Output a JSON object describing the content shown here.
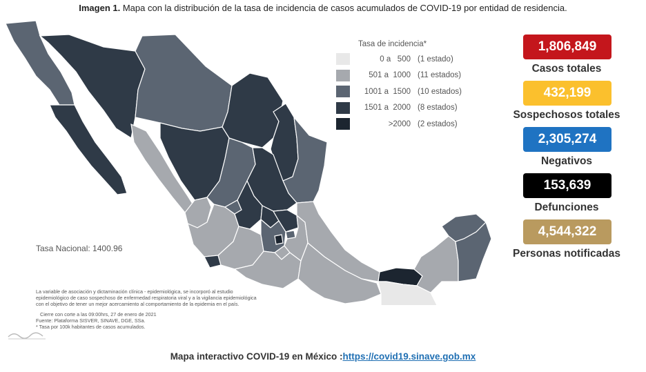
{
  "caption": {
    "bold": "Imagen 1.",
    "text": "Mapa con la distribución de la tasa de incidencia de casos acumulados de COVID-19 por entidad de residencia."
  },
  "chart_data": {
    "type": "choropleth",
    "legend": {
      "title": "Tasa de incidencia*",
      "placement": "top-center",
      "bins": [
        {
          "range": "0 a   500",
          "count": "(1 estado)",
          "color": "#e8e8e8"
        },
        {
          "range": "501 a  1000",
          "count": "(11 estados)",
          "color": "#a6a9ae"
        },
        {
          "range": "1001 a  1500",
          "count": "(10 estados)",
          "color": "#5b6572"
        },
        {
          "range": "1501 a  2000",
          "count": "(8 estados)",
          "color": "#2f3a47"
        },
        {
          "range": ">2000",
          "count": "(2 estados)",
          "color": "#1c2530"
        }
      ]
    },
    "national_rate": "Tasa Nacional: 1400.96"
  },
  "notes": {
    "line1": "La variable de asociación y dictaminación clínica - epidemiológica, se incorporó al estudio",
    "line2": "epidemiológico de caso sospechoso de enfermedad respiratoria viral y a la vigilancia epidemiológica",
    "line3": "con el objetivo de tener un mejor acercamiento al comportamiento de la epidemia en el país.",
    "line4": "Cierre con corte a las 09:00hrs, 27 de enero de 2021",
    "line5": "Fuente: Plataforma SISVER, SINAVE, DGE, SSa.",
    "line6": "* Tasa por 100k habitantes de casos acumulados."
  },
  "stats": [
    {
      "value": "1,806,849",
      "label": "Casos totales",
      "color": "#c4161c"
    },
    {
      "value": "432,199",
      "label": "Sospechosos totales",
      "color": "#fbc02d"
    },
    {
      "value": "2,305,274",
      "label": "Negativos",
      "color": "#1f73c2"
    },
    {
      "value": "153,639",
      "label": "Defunciones",
      "color": "#000000"
    },
    {
      "value": "4,544,322",
      "label": "Personas notificadas",
      "color": "#b99a5f"
    }
  ],
  "footer": {
    "text": "Mapa interactivo COVID-19 en México :",
    "link": "https://covid19.sinave.gob.mx"
  }
}
